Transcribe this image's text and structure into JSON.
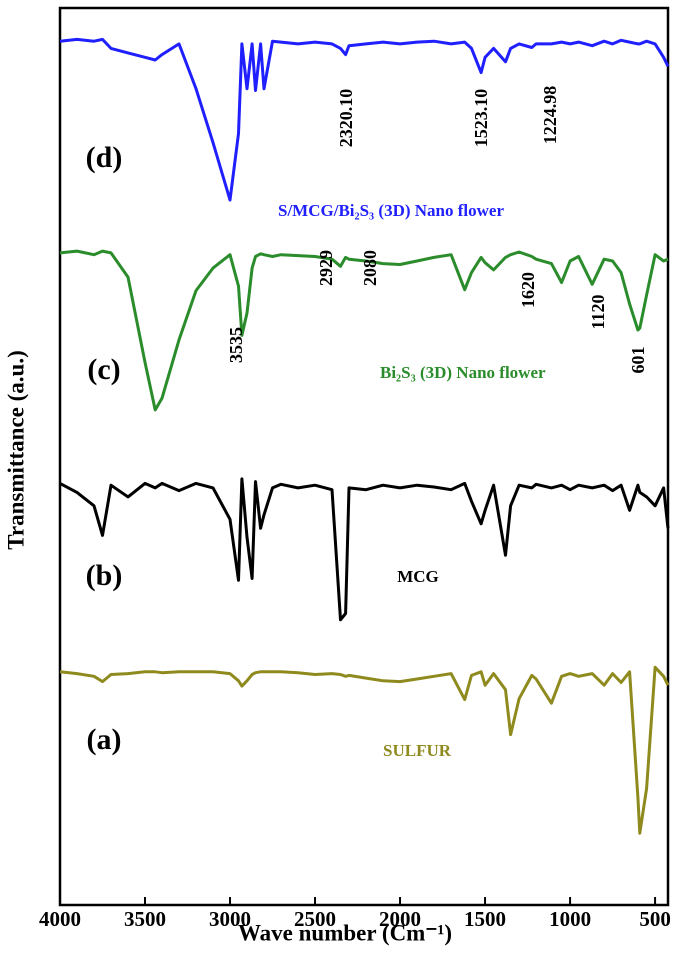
{
  "chart_data": {
    "type": "line",
    "x_label": "Wave number (Cm⁻¹)",
    "y_label": "Transmittance (a.u.)",
    "xlim": [
      4000,
      424
    ],
    "ylim": [
      0,
      100
    ],
    "xticks": [
      4000,
      3500,
      3000,
      2500,
      2000,
      1500,
      1000,
      500
    ],
    "x": [
      4000,
      3900,
      3800,
      3750,
      3700,
      3600,
      3500,
      3440,
      3400,
      3300,
      3200,
      3100,
      3000,
      2950,
      2930,
      2900,
      2870,
      2850,
      2820,
      2800,
      2750,
      2700,
      2600,
      2500,
      2400,
      2350,
      2320,
      2300,
      2200,
      2100,
      2000,
      1900,
      1800,
      1700,
      1620,
      1580,
      1523,
      1500,
      1450,
      1380,
      1350,
      1300,
      1225,
      1200,
      1110,
      1050,
      1000,
      950,
      870,
      800,
      750,
      700,
      650,
      601,
      590,
      550,
      500,
      450,
      424
    ],
    "series": [
      {
        "name": "S/MCG/Bi₂S₃ (3D) Nano flower",
        "tag": "(d)",
        "color": "#1f1fff",
        "values": [
          96.3,
          96.5,
          96.3,
          96.5,
          95.5,
          95.0,
          94.5,
          94.2,
          94.8,
          96.0,
          91,
          85,
          78.6,
          86,
          96.0,
          91.0,
          96,
          90.8,
          96,
          91,
          96.3,
          96.2,
          96.0,
          96.2,
          96.0,
          95.5,
          94.8,
          95.8,
          96.0,
          96.2,
          96.0,
          96.2,
          96.3,
          96.0,
          96.2,
          95.5,
          92.8,
          94.5,
          95.5,
          94.0,
          95.5,
          96.0,
          95.6,
          96.0,
          96.0,
          96.2,
          96.0,
          96.2,
          95.8,
          96.3,
          96.0,
          96.4,
          96.2,
          96.0,
          96.0,
          96.3,
          96.0,
          94.5,
          93.5
        ]
      },
      {
        "name": "Bi₂S₃ (3D) Nano flower",
        "tag": "(c)",
        "color": "#2a8c2a",
        "values": [
          72.7,
          72.9,
          72.5,
          72.9,
          72.7,
          70.0,
          60.5,
          55.2,
          56.5,
          63,
          68.5,
          71,
          72.5,
          69,
          63.5,
          66,
          71,
          72.3,
          72.6,
          72.5,
          72.3,
          72.5,
          72.4,
          72.3,
          72.0,
          71.2,
          72.2,
          72.0,
          71.8,
          71.5,
          71.4,
          71.8,
          72.2,
          72.5,
          68.6,
          70.5,
          72.2,
          71.6,
          70.8,
          72.2,
          72.5,
          72.8,
          72.3,
          72.0,
          71.5,
          69.4,
          71.8,
          72.3,
          69.2,
          72.0,
          71.8,
          70.5,
          67,
          64.1,
          64.3,
          68,
          72.5,
          71.8,
          72.0
        ]
      },
      {
        "name": "MCG",
        "tag": "(b)",
        "color": "#000000",
        "values": [
          47.0,
          46.0,
          44.5,
          41.2,
          46.8,
          45.5,
          47.0,
          46.5,
          47.0,
          46.2,
          47.0,
          46.5,
          43.0,
          36.2,
          47.5,
          41,
          36.4,
          47.2,
          42,
          43.5,
          46.5,
          46.9,
          46.5,
          46.8,
          46.3,
          31.8,
          32.5,
          46.5,
          46.3,
          46.8,
          46.5,
          46.8,
          46.6,
          46.3,
          47.0,
          45.0,
          42.5,
          44.0,
          46.8,
          39.0,
          44.5,
          46.8,
          46.5,
          46.9,
          46.5,
          46.8,
          46.3,
          46.8,
          46.5,
          46.8,
          46.2,
          46.8,
          44.0,
          46.8,
          46.0,
          45.5,
          44.5,
          46.5,
          42.0
        ]
      },
      {
        "name": "SULFUR",
        "tag": "(a)",
        "color": "#8f8a1e",
        "values": [
          26.0,
          25.8,
          25.5,
          24.9,
          25.7,
          25.8,
          26.0,
          26.0,
          25.9,
          26.0,
          26.0,
          26.0,
          25.8,
          25.0,
          24.4,
          25.0,
          25.7,
          25.9,
          26.0,
          26.0,
          26.0,
          26.0,
          25.9,
          25.7,
          25.8,
          25.7,
          25.5,
          25.6,
          25.3,
          25.0,
          24.9,
          25.2,
          25.5,
          25.8,
          22.9,
          25.6,
          26.0,
          24.5,
          25.8,
          24.0,
          19.0,
          23,
          25.6,
          25.2,
          22.5,
          25.5,
          25.8,
          25.5,
          25.8,
          24.5,
          25.8,
          24.8,
          26.0,
          12.0,
          8.0,
          13,
          26.5,
          25.5,
          24.5
        ]
      }
    ],
    "annotations": [
      "2320.10",
      "1523.10",
      "1224.98",
      "3535",
      "2929",
      "2080",
      "1620",
      "1120",
      "601"
    ]
  }
}
